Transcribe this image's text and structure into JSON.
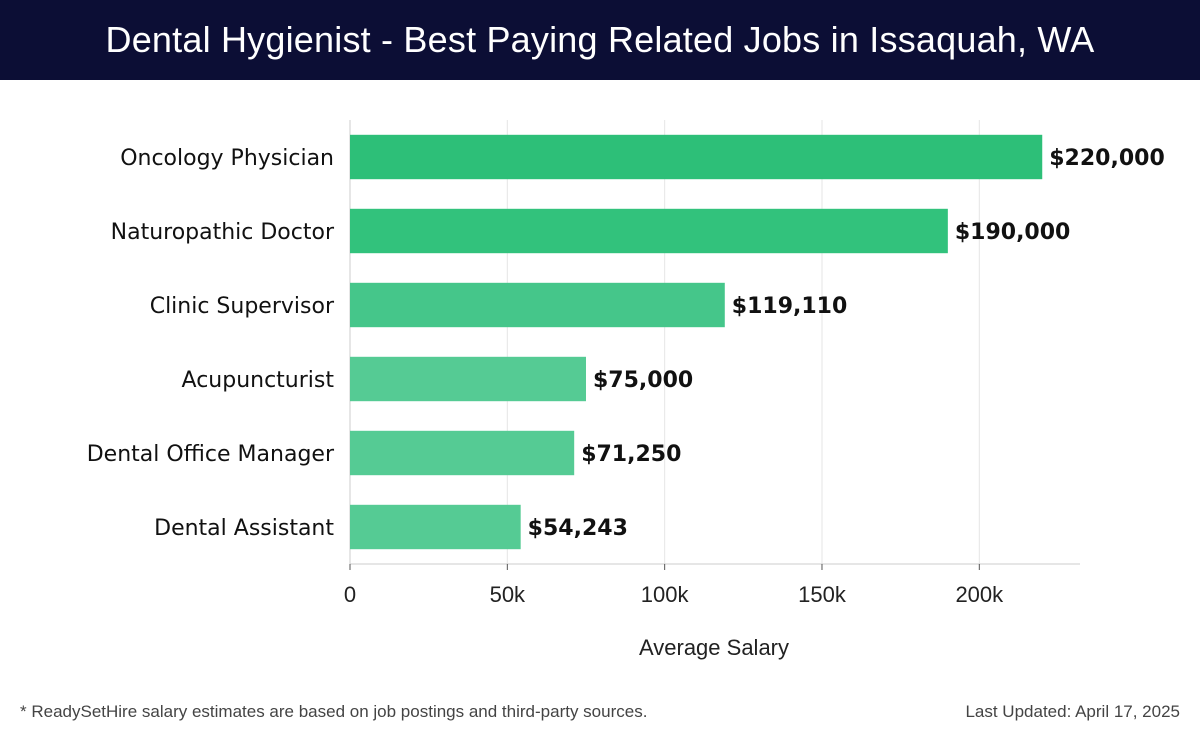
{
  "header": {
    "title": "Dental Hygienist - Best Paying Related Jobs in Issaquah, WA"
  },
  "chart_data": {
    "type": "bar",
    "orientation": "horizontal",
    "categories": [
      "Oncology Physician",
      "Naturopathic Doctor",
      "Clinic Supervisor",
      "Acupuncturist",
      "Dental Office Manager",
      "Dental Assistant"
    ],
    "values": [
      220000,
      190000,
      119110,
      75000,
      71250,
      54243
    ],
    "value_labels": [
      "$220,000",
      "$190,000",
      "$119,110",
      "$75,000",
      "$71,250",
      "$54,243"
    ],
    "xlabel": "Average Salary",
    "ylabel": "",
    "xlim": [
      0,
      232000
    ],
    "xticks": [
      0,
      50000,
      100000,
      150000,
      200000
    ],
    "xtick_labels": [
      "0",
      "50k",
      "100k",
      "150k",
      "200k"
    ],
    "grid": true,
    "bar_colors": [
      "#2dbf78",
      "#32c27c",
      "#45c68a",
      "#55cb94",
      "#55cb94",
      "#55cb94"
    ]
  },
  "footer": {
    "note": "* ReadySetHire salary estimates are based on job postings and third-party sources.",
    "updated": "Last Updated: April 17, 2025"
  }
}
